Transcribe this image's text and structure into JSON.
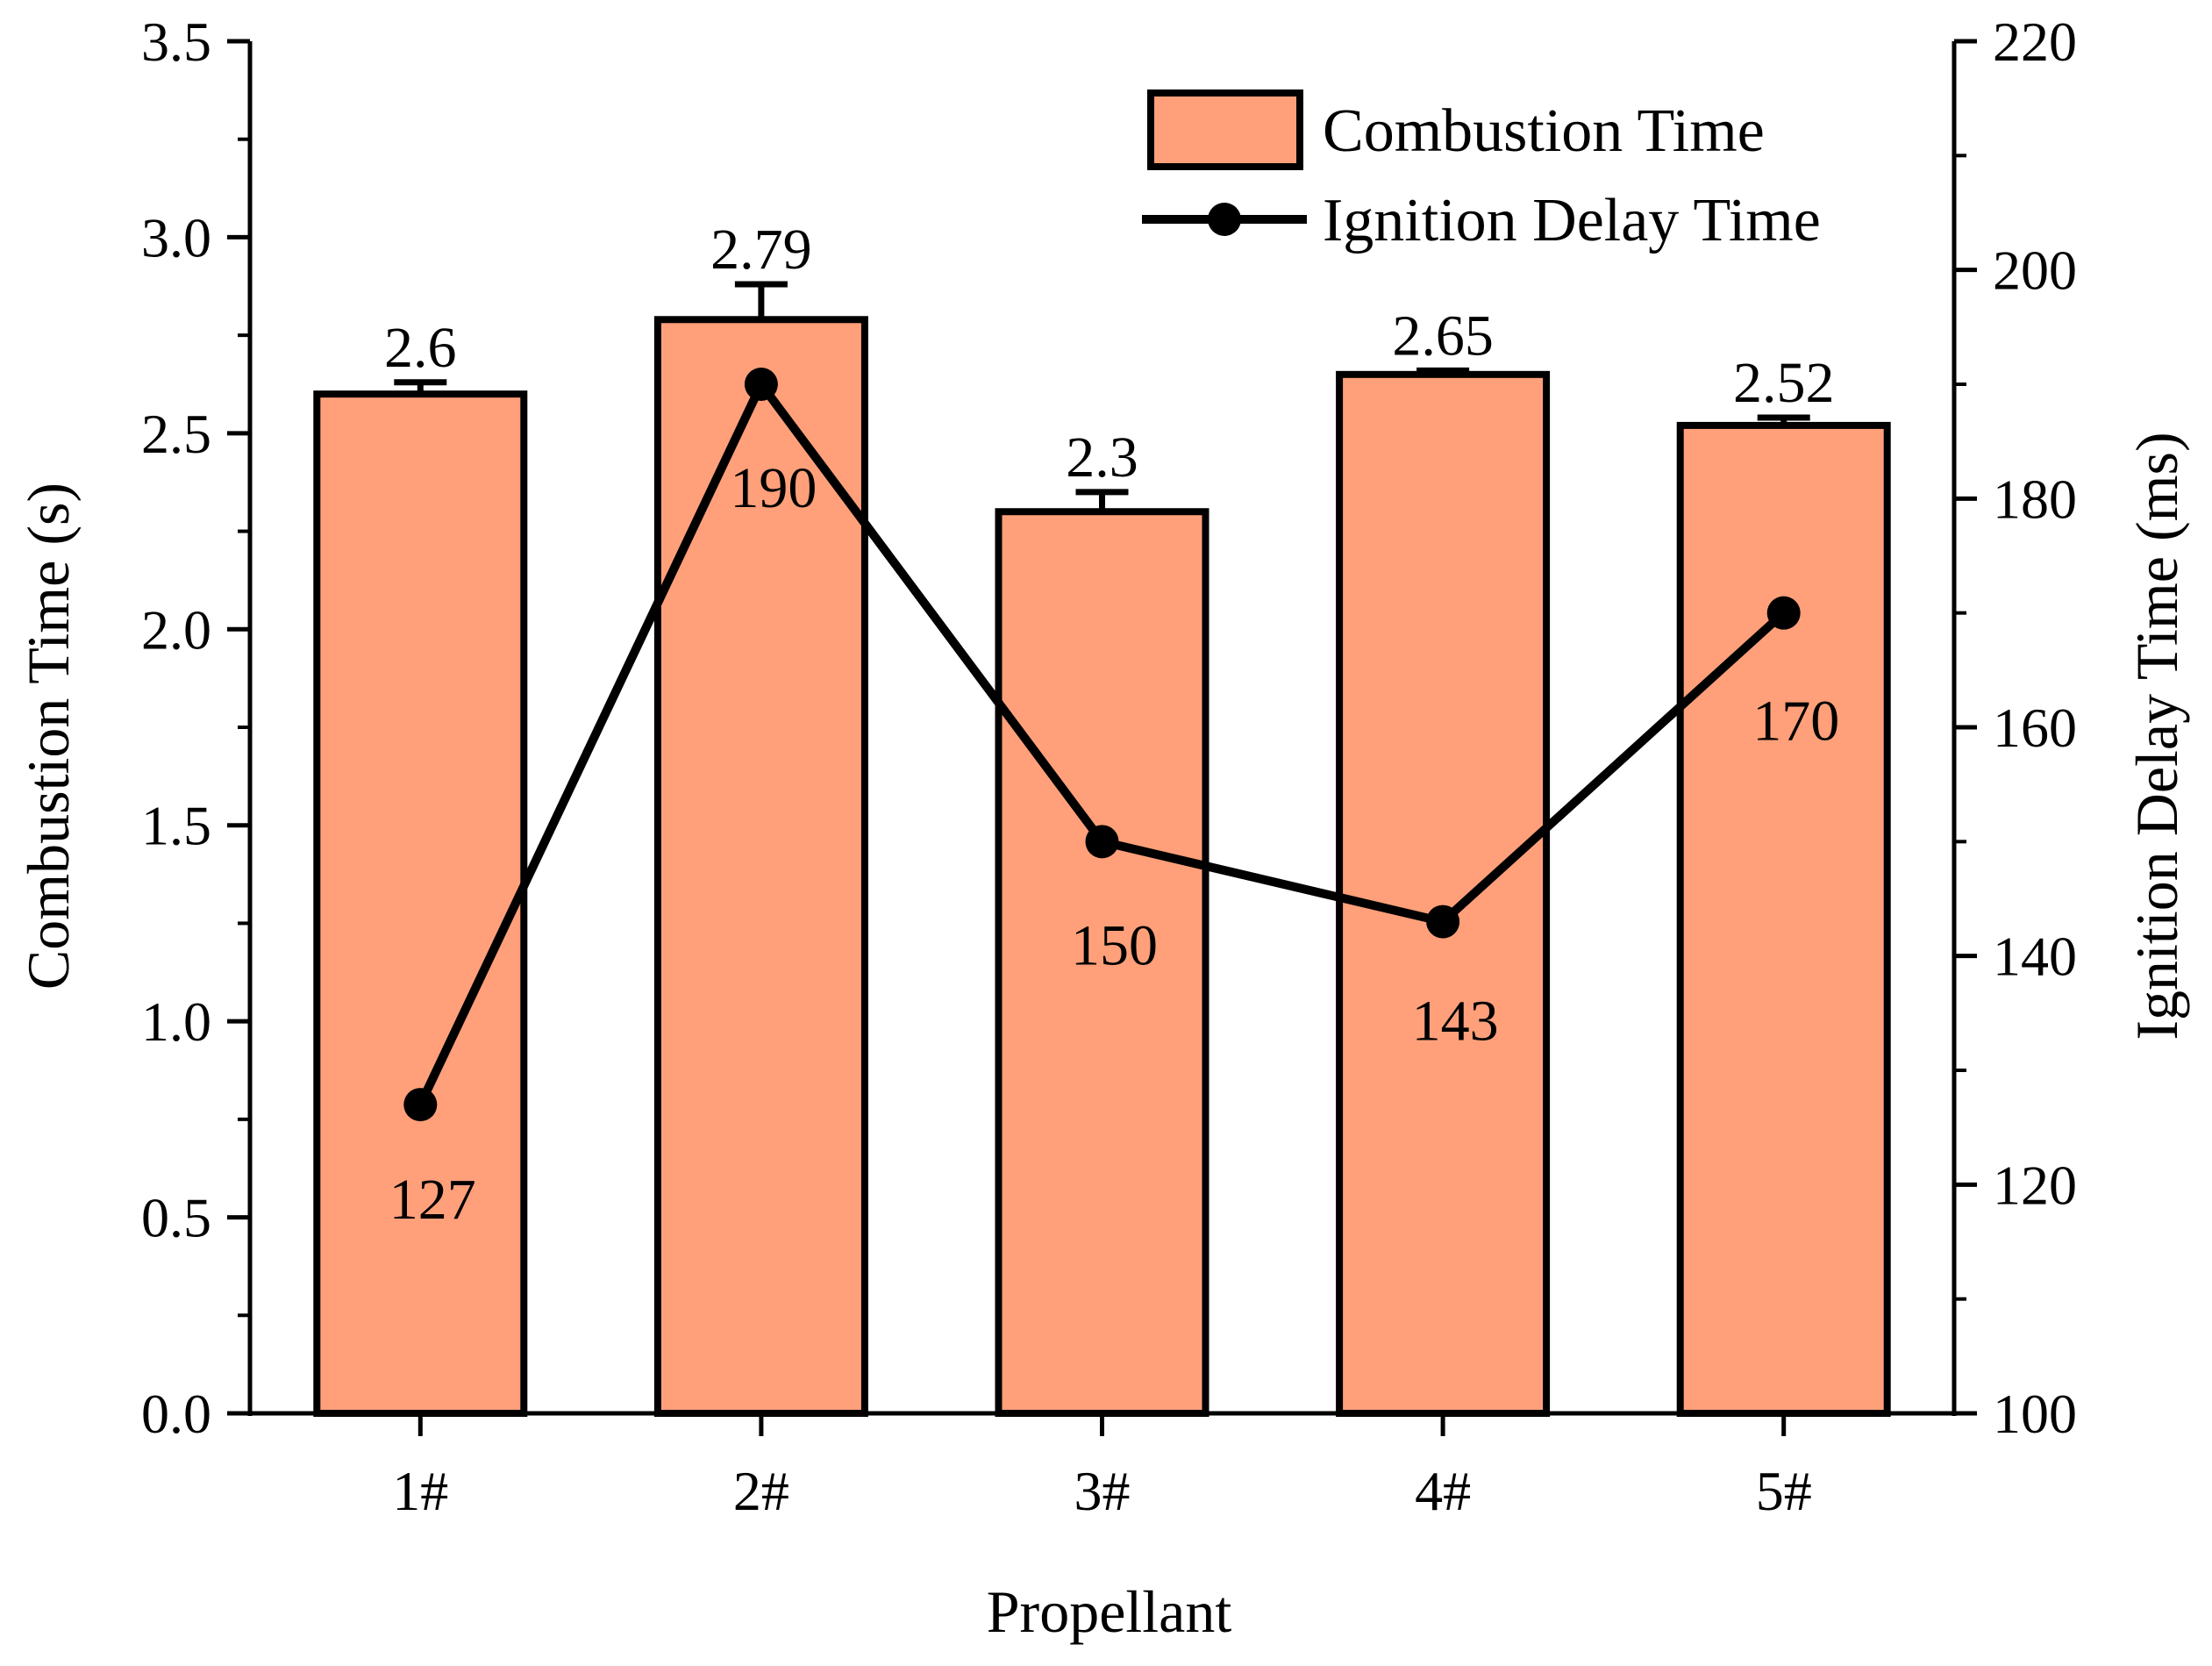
{
  "chart_data": {
    "type": "bar+line",
    "categories": [
      "1#",
      "2#",
      "3#",
      "4#",
      "5#"
    ],
    "xlabel": "Propellant",
    "series": [
      {
        "name": "Combustion Time",
        "type": "bar",
        "axis": "left",
        "values": [
          2.6,
          2.79,
          2.3,
          2.65,
          2.52
        ],
        "error": [
          0.03,
          0.09,
          0.05,
          0.01,
          0.02
        ],
        "labels": [
          "2.6",
          "2.79",
          "2.3",
          "2.65",
          "2.52"
        ],
        "color": "#FFA07A"
      },
      {
        "name": "Ignition Delay Time",
        "type": "line",
        "axis": "right",
        "values": [
          127,
          190,
          150,
          143,
          170
        ],
        "labels": [
          "127",
          "190",
          "150",
          "143",
          "170"
        ],
        "color": "#000000"
      }
    ],
    "y_left": {
      "label": "Combustion Time (s)",
      "lim": [
        0,
        3.5
      ],
      "ticks": [
        "0.0",
        "0.5",
        "1.0",
        "1.5",
        "2.0",
        "2.5",
        "3.0",
        "3.5"
      ]
    },
    "y_right": {
      "label": "Ignition Delay Time (ms)",
      "lim": [
        100,
        220
      ],
      "ticks": [
        "100",
        "120",
        "140",
        "160",
        "180",
        "200",
        "220"
      ]
    },
    "legend": {
      "position": "top-right",
      "entries": [
        "Combustion Time",
        "Ignition Delay Time"
      ]
    },
    "grid": false
  }
}
